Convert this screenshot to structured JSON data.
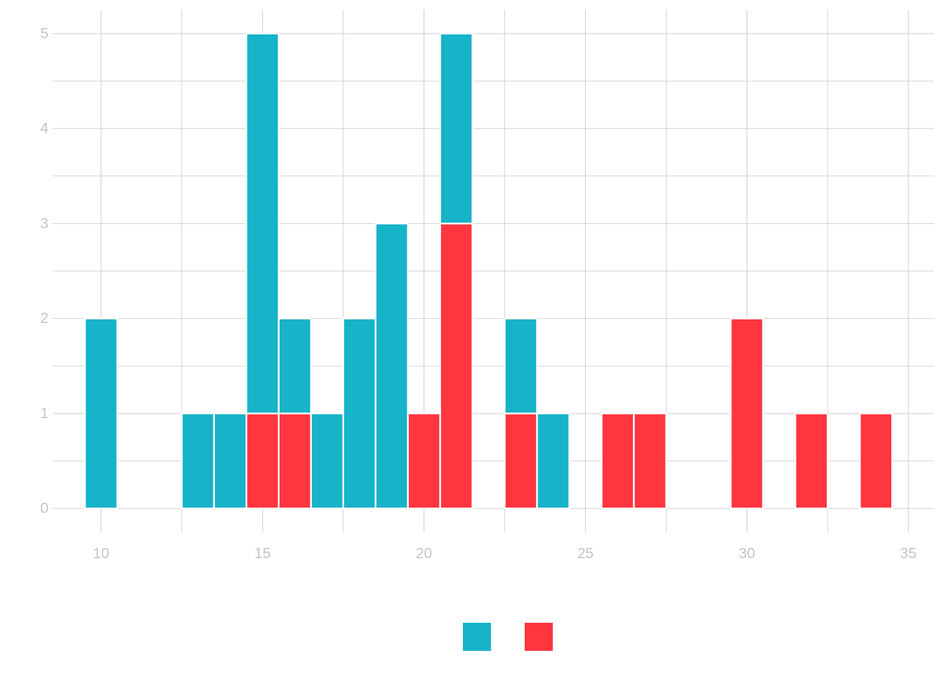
{
  "chart_data": {
    "type": "bar",
    "subtype": "stacked-histogram",
    "binwidth": 1,
    "xlim": [
      8.5,
      35.8
    ],
    "ylim": [
      -0.25,
      5.25
    ],
    "x_ticks": [
      10,
      15,
      20,
      25,
      30,
      35
    ],
    "y_ticks": [
      0,
      1,
      2,
      3,
      4,
      5
    ],
    "grid": true,
    "legend_position": "bottom",
    "series": [
      {
        "color": "#17b3c9",
        "x": [
          10,
          13,
          14,
          15,
          16,
          17,
          18,
          19,
          21,
          23,
          24
        ],
        "values": [
          2,
          1,
          1,
          4,
          1,
          1,
          2,
          3,
          2,
          1,
          1
        ]
      },
      {
        "color": "#ff3540",
        "x": [
          15,
          16,
          20,
          21,
          23,
          26,
          27,
          30,
          32,
          34
        ],
        "values": [
          1,
          1,
          1,
          3,
          1,
          1,
          1,
          2,
          1,
          1
        ]
      }
    ]
  }
}
